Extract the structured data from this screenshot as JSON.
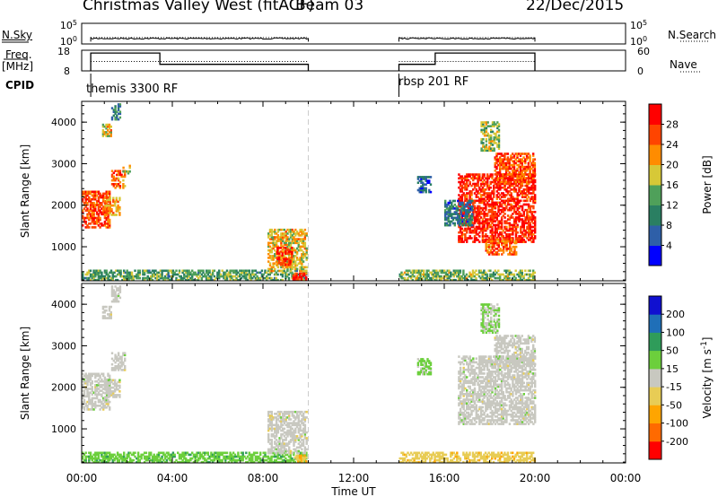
{
  "header": {
    "station": "Christmas Valley West (fitACF)",
    "beam": "Beam 03",
    "date": "22/Dec/2015"
  },
  "side_labels": {
    "nsky": "N.Sky",
    "freq_line1": "Freq.",
    "freq_line2": "[MHz]",
    "cpid": "CPID",
    "nsearch": "N.Search",
    "nave": "Nave"
  },
  "mode_labels": [
    "themis 3300 RF",
    "rbsp 201 RF"
  ],
  "chart_data": [
    {
      "type": "line",
      "name": "noise",
      "series": [
        {
          "name": "N.Sky",
          "x": [
            0.4,
            10.0,
            14.0,
            20.0
          ],
          "y": [
            10,
            12,
            13,
            12
          ]
        },
        {
          "name": "N.Search",
          "x": [
            0.4,
            10.0,
            14.0,
            20.0
          ],
          "y": [
            10,
            12,
            13,
            12
          ]
        }
      ],
      "xlim": [
        0,
        24
      ],
      "left_ticks": [
        "10^5",
        "10^0"
      ],
      "right_ticks": [
        "10^5",
        "10^0"
      ]
    },
    {
      "type": "line",
      "name": "frequency-and-nave",
      "freq_ticks": [
        "18",
        "8"
      ],
      "nave_ticks": [
        "60",
        "0"
      ],
      "series": [
        {
          "name": "Freq.",
          "x": [
            0.4,
            3.45,
            3.45,
            10.0
          ],
          "y": [
            17,
            17,
            11,
            11
          ]
        },
        {
          "name": "Nave",
          "x": [
            0.4,
            10.0
          ],
          "y": [
            27,
            27
          ]
        },
        {
          "name": "Freq.",
          "x": [
            14.0,
            15.6,
            15.6,
            20.0
          ],
          "y": [
            11,
            11,
            17,
            17
          ]
        },
        {
          "name": "Nave",
          "x": [
            14.0,
            20.0
          ],
          "y": [
            27,
            27
          ]
        }
      ]
    },
    {
      "type": "heatmap",
      "name": "power",
      "ylabel": "Slant Range [km]",
      "y_ticks": [
        "1000",
        "2000",
        "3000",
        "4000"
      ],
      "ylim": [
        180,
        4500
      ],
      "xlim": [
        0,
        24
      ],
      "colorbar_label": "Power [dB]",
      "colorbar_ticks": [
        "4",
        "8",
        "12",
        "16",
        "20",
        "24",
        "28"
      ],
      "colorbar_range": [
        0,
        30
      ],
      "colors": [
        "#0000ff",
        "#2e5fa8",
        "#2a7f62",
        "#4fa05a",
        "#d7c837",
        "#ff8c00",
        "#ff4400",
        "#ff0000"
      ],
      "regions": [
        {
          "t0": 0.0,
          "t1": 1.2,
          "r0": 1450,
          "r1": 2350,
          "value": 25
        },
        {
          "t0": 1.0,
          "t1": 1.7,
          "r0": 1750,
          "r1": 2200,
          "value": 20
        },
        {
          "t0": 1.3,
          "t1": 1.9,
          "r0": 2400,
          "r1": 2850,
          "value": 23
        },
        {
          "t0": 1.8,
          "t1": 2.1,
          "r0": 2750,
          "r1": 2950,
          "value": 17
        },
        {
          "t0": 0.9,
          "t1": 1.3,
          "r0": 3650,
          "r1": 3950,
          "value": 18
        },
        {
          "t0": 1.3,
          "t1": 1.7,
          "r0": 4050,
          "r1": 4450,
          "value": 10
        },
        {
          "t0": 0.0,
          "t1": 9.9,
          "r0": 180,
          "r1": 450,
          "value": 12
        },
        {
          "t0": 8.2,
          "t1": 9.9,
          "r0": 400,
          "r1": 1400,
          "value": 18
        },
        {
          "t0": 8.6,
          "t1": 9.3,
          "r0": 550,
          "r1": 1000,
          "value": 26
        },
        {
          "t0": 9.3,
          "t1": 9.9,
          "r0": 200,
          "r1": 380,
          "value": 27
        },
        {
          "t0": 14.0,
          "t1": 20.0,
          "r0": 180,
          "r1": 420,
          "value": 14
        },
        {
          "t0": 16.6,
          "t1": 20.0,
          "r0": 1100,
          "r1": 2750,
          "value": 27
        },
        {
          "t0": 17.8,
          "t1": 19.2,
          "r0": 800,
          "r1": 1200,
          "value": 23
        },
        {
          "t0": 16.0,
          "t1": 17.2,
          "r0": 1500,
          "r1": 2100,
          "value": 8
        },
        {
          "t0": 18.2,
          "t1": 20.0,
          "r0": 2500,
          "r1": 3250,
          "value": 24
        },
        {
          "t0": 17.6,
          "t1": 18.4,
          "r0": 3300,
          "r1": 4000,
          "value": 15
        },
        {
          "t0": 14.8,
          "t1": 15.4,
          "r0": 2300,
          "r1": 2700,
          "value": 6
        }
      ]
    },
    {
      "type": "heatmap",
      "name": "velocity",
      "ylabel": "Slant Range [km]",
      "y_ticks": [
        "1000",
        "2000",
        "3000",
        "4000"
      ],
      "ylim": [
        180,
        4500
      ],
      "xlim": [
        0,
        24
      ],
      "xlabel": "Time UT",
      "x_ticks": [
        "00:00",
        "04:00",
        "08:00",
        "12:00",
        "16:00",
        "20:00",
        "00:00"
      ],
      "colorbar_label": "Velocity [m s^-1]",
      "colorbar_ticks": [
        "200",
        "100",
        "50",
        "15",
        "-15",
        "-50",
        "-100",
        "-200"
      ],
      "colorbar_range": [
        -250,
        250
      ],
      "colors": [
        "#ff0000",
        "#ff6a00",
        "#ffa500",
        "#e8cc55",
        "#c8c8c0",
        "#6ccf3c",
        "#2f9c5a",
        "#1f6fb8",
        "#1010d0"
      ],
      "regions": [
        {
          "t0": 0.0,
          "t1": 1.2,
          "r0": 1450,
          "r1": 2350,
          "value": 0
        },
        {
          "t0": 1.0,
          "t1": 1.7,
          "r0": 1750,
          "r1": 2200,
          "value": 0
        },
        {
          "t0": 1.3,
          "t1": 1.9,
          "r0": 2400,
          "r1": 2850,
          "value": 0
        },
        {
          "t0": 0.9,
          "t1": 1.3,
          "r0": 3650,
          "r1": 3950,
          "value": 0
        },
        {
          "t0": 1.3,
          "t1": 1.7,
          "r0": 4050,
          "r1": 4450,
          "value": 0
        },
        {
          "t0": 0.0,
          "t1": 9.9,
          "r0": 180,
          "r1": 450,
          "value": 60
        },
        {
          "t0": 8.2,
          "t1": 9.9,
          "r0": 400,
          "r1": 1400,
          "value": 0
        },
        {
          "t0": 9.3,
          "t1": 9.9,
          "r0": 200,
          "r1": 380,
          "value": -80
        },
        {
          "t0": 14.0,
          "t1": 20.0,
          "r0": 180,
          "r1": 420,
          "value": -60
        },
        {
          "t0": 16.6,
          "t1": 20.0,
          "r0": 1100,
          "r1": 2750,
          "value": 0
        },
        {
          "t0": 18.2,
          "t1": 20.0,
          "r0": 2500,
          "r1": 3250,
          "value": 0
        },
        {
          "t0": 17.6,
          "t1": 18.4,
          "r0": 3300,
          "r1": 4000,
          "value": 30
        },
        {
          "t0": 14.8,
          "t1": 15.4,
          "r0": 2300,
          "r1": 2700,
          "value": 40
        }
      ]
    }
  ]
}
